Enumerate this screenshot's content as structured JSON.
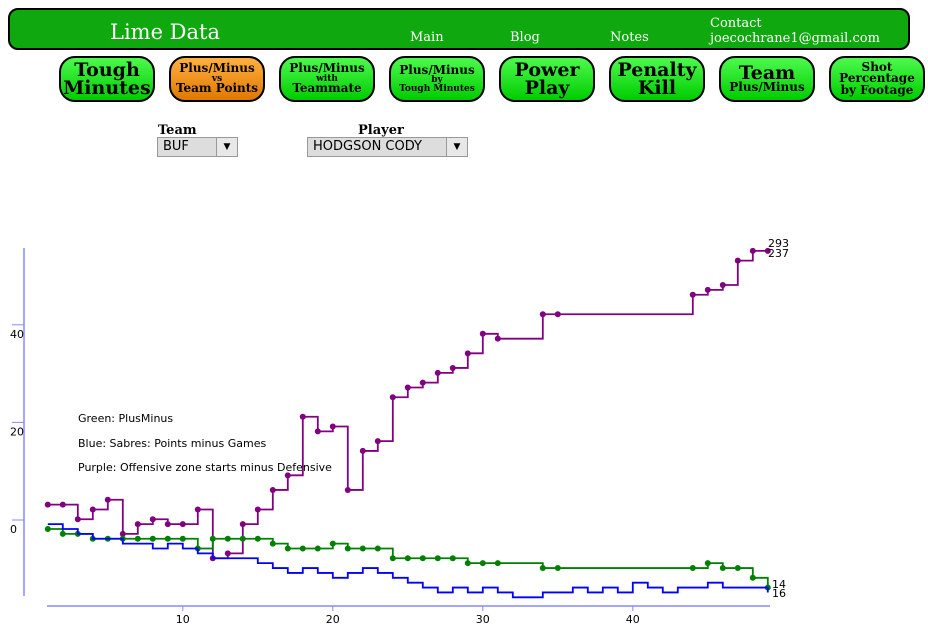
{
  "header": {
    "title": "Lime Data",
    "nav": [
      "Main",
      "Blog",
      "Notes"
    ],
    "contact_label": "Contact",
    "contact_email": "joecochrane1@gmail.com"
  },
  "buttons": [
    {
      "lines": [
        "Tough",
        "Minutes"
      ]
    },
    {
      "lines": [
        "Plus/Minus",
        "vs",
        "Team Points"
      ]
    },
    {
      "lines": [
        "Plus/Minus",
        "with",
        "Teammate"
      ]
    },
    {
      "lines": [
        "Plus/Minus",
        "by",
        "Tough Minutes"
      ]
    },
    {
      "lines": [
        "Power",
        "Play"
      ]
    },
    {
      "lines": [
        "Penalty",
        "Kill"
      ]
    },
    {
      "lines": [
        "Team",
        "Plus/Minus"
      ]
    },
    {
      "lines": [
        "Shot",
        "Percentage",
        "by Footage"
      ]
    }
  ],
  "filters": {
    "team_label": "Team",
    "team_value": "BUF",
    "player_label": "Player",
    "player_value": "HODGSON CODY"
  },
  "chart_data": {
    "type": "line",
    "legend": [
      "Green: PlusMinus",
      "Blue: Sabres: Points minus Games",
      "Purple: Offensive zone starts minus Defensive"
    ],
    "x_ticks": [
      10,
      20,
      30,
      40
    ],
    "y_ticks": [
      0,
      20,
      40
    ],
    "end_labels": [
      "293",
      "237",
      "14",
      "16"
    ],
    "series": [
      {
        "color": "#800080",
        "markers": true,
        "x": [
          1,
          2,
          3,
          4,
          5,
          6,
          7,
          8,
          9,
          10,
          11,
          12,
          13,
          14,
          15,
          16,
          17,
          18,
          19,
          20,
          21,
          22,
          23,
          24,
          25,
          26,
          27,
          28,
          29,
          30,
          31,
          34,
          35,
          44,
          45,
          46,
          47,
          48,
          49
        ],
        "y": [
          5,
          5,
          2,
          4,
          6,
          -1,
          1,
          2,
          1,
          1,
          4,
          -6,
          -5,
          1,
          4,
          8,
          11,
          23,
          20,
          21,
          8,
          16,
          18,
          27,
          29,
          30,
          32,
          33,
          36,
          40,
          39,
          44,
          44,
          48,
          49,
          50,
          55,
          57,
          57
        ]
      },
      {
        "color": "#008000",
        "markers": true,
        "x": [
          1,
          2,
          3,
          4,
          5,
          6,
          7,
          8,
          9,
          10,
          11,
          12,
          13,
          14,
          15,
          16,
          17,
          18,
          19,
          20,
          21,
          22,
          23,
          24,
          25,
          26,
          27,
          28,
          29,
          30,
          31,
          34,
          35,
          44,
          45,
          46,
          47,
          48,
          49
        ],
        "y": [
          0,
          -1,
          -1,
          -2,
          -2,
          -2,
          -2,
          -2,
          -2,
          -2,
          -4,
          -2,
          -2,
          -2,
          -2,
          -3,
          -4,
          -4,
          -4,
          -3,
          -4,
          -4,
          -4,
          -6,
          -6,
          -6,
          -6,
          -6,
          -7,
          -7,
          -7,
          -8,
          -8,
          -8,
          -7,
          -8,
          -8,
          -10,
          -12
        ]
      },
      {
        "color": "#0000ff",
        "markers": false,
        "x": [
          1,
          2,
          3,
          4,
          5,
          6,
          7,
          8,
          9,
          10,
          11,
          12,
          13,
          14,
          15,
          16,
          17,
          18,
          19,
          20,
          21,
          22,
          23,
          24,
          25,
          26,
          27,
          28,
          29,
          30,
          31,
          32,
          33,
          34,
          35,
          36,
          37,
          38,
          39,
          40,
          41,
          42,
          43,
          44,
          45,
          46,
          47,
          48,
          49
        ],
        "y": [
          1,
          0,
          -1,
          -2,
          -2,
          -3,
          -3,
          -4,
          -3,
          -4,
          -5,
          -6,
          -6,
          -6,
          -7,
          -8,
          -9,
          -8,
          -9,
          -10,
          -9,
          -8,
          -9,
          -10,
          -11,
          -12,
          -13,
          -12,
          -13,
          -12,
          -13,
          -14,
          -14,
          -13,
          -13,
          -12,
          -13,
          -12,
          -13,
          -11,
          -12,
          -13,
          -12,
          -12,
          -11,
          -12,
          -12,
          -12,
          -13
        ]
      }
    ]
  }
}
